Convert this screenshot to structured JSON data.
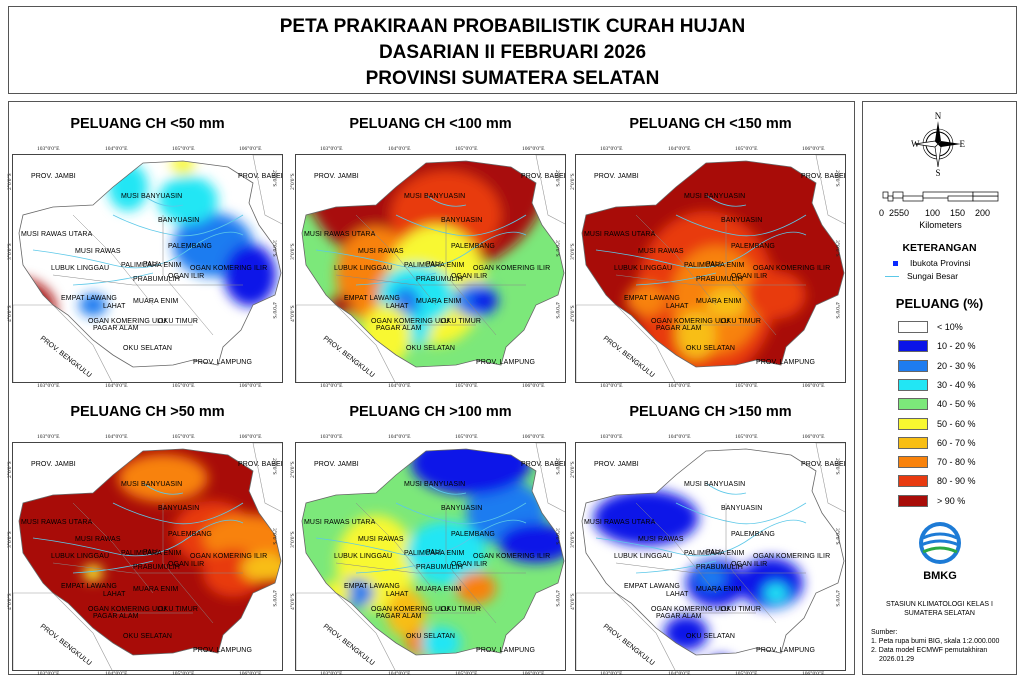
{
  "title": {
    "line1": "PETA PRAKIRAAN PROBABILISTIK CURAH HUJAN",
    "line2": "DASARIAN II FEBRUARI 2026",
    "line3": "PROVINSI SUMATERA SELATAN"
  },
  "panels": [
    {
      "title": "PELUANG CH <50 mm",
      "scheme": "lt50"
    },
    {
      "title": "PELUANG CH <100 mm",
      "scheme": "lt100"
    },
    {
      "title": "PELUANG CH <150 mm",
      "scheme": "lt150"
    },
    {
      "title": "PELUANG CH >50 mm",
      "scheme": "gt50"
    },
    {
      "title": "PELUANG CH >100 mm",
      "scheme": "gt100"
    },
    {
      "title": "PELUANG CH >150 mm",
      "scheme": "gt150"
    }
  ],
  "map_labels": {
    "jambi": "PROV. JAMBI",
    "babel": "PROV. BABEL",
    "bengkulu": "PROV. BENGKULU",
    "lampung": "PROV. LAMPUNG",
    "musi_banyuasin": "MUSI BANYUASIN",
    "banyuasin": "BANYUASIN",
    "musi_rawas_utara": "MUSI RAWAS UTARA",
    "musi_rawas": "MUSI RAWAS",
    "palembang": "PALEMBANG",
    "pali": "PALI",
    "lubuk_linggau": "LUBUK LINGGAU",
    "palimuara_enim": "PALIMUARA ENIM",
    "prabumulih": "PRABUMULIH",
    "ogan_ilir": "OGAN ILIR",
    "ogan_komering_ilir": "OGAN KOMERING ILIR",
    "empat_lawang": "EMPAT LAWANG",
    "lahat": "LAHAT",
    "muara_enim": "MUARA ENIM",
    "ogan_komering_ulu": "OGAN KOMERING ULU",
    "oku_timur": "OKU TIMUR",
    "pagar_alam": "PAGAR ALAM",
    "oku_selatan": "OKU SELATAN"
  },
  "coords": {
    "top": [
      "103°0'0\"E",
      "104°0'0\"E",
      "105°0'0\"E",
      "106°0'0\"E"
    ],
    "bottom": [
      "103°0'0\"E",
      "104°0'0\"E",
      "105°0'0\"E",
      "106°0'0\"E"
    ],
    "left": [
      "2°0'0\"S",
      "3°0'0\"S",
      "4°0'0\"S",
      "5°0'0\"S"
    ],
    "right": [
      "2°0'0\"S",
      "3°0'0\"S",
      "4°0'0\"S",
      "5°0'0\"S"
    ]
  },
  "compass": {
    "n": "N",
    "s": "S",
    "e": "E",
    "w": "W"
  },
  "scale": {
    "ticks": [
      "0",
      "25",
      "50",
      "100",
      "150",
      "200"
    ],
    "unit": "Kilometers"
  },
  "legend": {
    "heading": "KETERANGAN",
    "capital": "Ibukota Provinsi",
    "river": "Sungai Besar",
    "peluang_title": "PELUANG (%)",
    "classes": [
      {
        "label": "< 10%",
        "color": "#ffffff"
      },
      {
        "label": "10 - 20 %",
        "color": "#0a14e8"
      },
      {
        "label": "20 - 30 %",
        "color": "#1e7cf0"
      },
      {
        "label": "30 - 40 %",
        "color": "#22e6f4"
      },
      {
        "label": "40 - 50 %",
        "color": "#7ce87a"
      },
      {
        "label": "50 - 60 %",
        "color": "#f8f830"
      },
      {
        "label": "60 - 70 %",
        "color": "#f8be12"
      },
      {
        "label": "70 - 80 %",
        "color": "#f8820c"
      },
      {
        "label": "80 - 90 %",
        "color": "#e83a10"
      },
      {
        "label": "> 90 %",
        "color": "#a80c08"
      }
    ]
  },
  "bmkg": "BMKG",
  "station": {
    "line1": "STASIUN KLIMATOLOGI KELAS I",
    "line2": "SUMATERA SELATAN"
  },
  "sources": {
    "heading": "Sumber:",
    "s1": "1. Peta rupa bumi BIG, skala 1:2.000.000",
    "s2": "2. Data model ECMWF pemutakhiran",
    "s3": "2026.01.29"
  }
}
